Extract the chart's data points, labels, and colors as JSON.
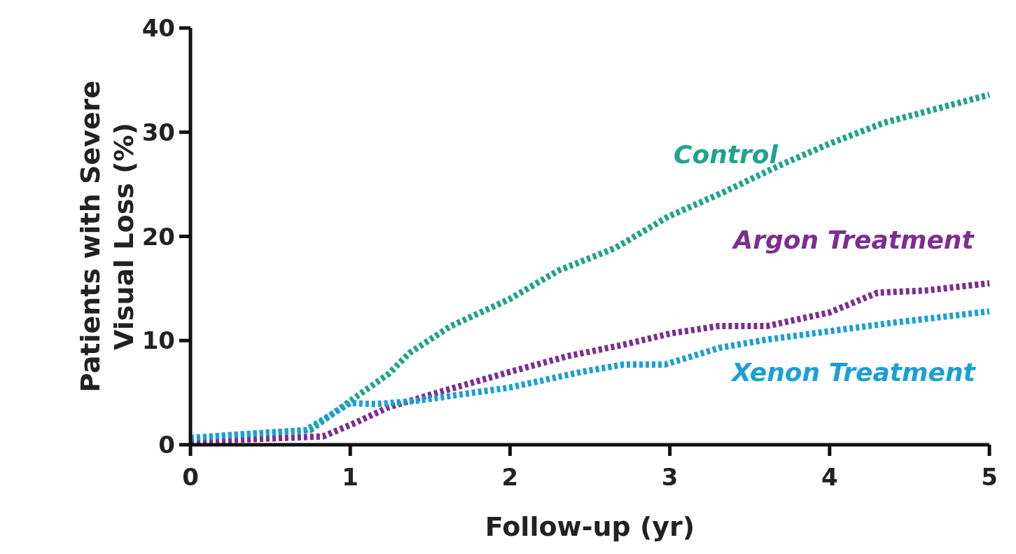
{
  "chart_data": {
    "type": "line",
    "xlabel": "Follow-up (yr)",
    "ylabel": "Patients with Severe\nVisual Loss (%)",
    "xlim": [
      0,
      5
    ],
    "ylim": [
      0,
      40
    ],
    "xticks": [
      0,
      1,
      2,
      3,
      4,
      5
    ],
    "yticks": [
      0,
      10,
      20,
      30,
      40
    ],
    "grid": false,
    "line_style": "dotted",
    "marker": "none",
    "series": [
      {
        "name": "Control",
        "color": "#1fa38a",
        "x": [
          0,
          0.3,
          0.75,
          1.0,
          1.24,
          1.37,
          1.63,
          2.0,
          2.3,
          2.66,
          2.99,
          3.33,
          3.7,
          4.0,
          4.34,
          5
        ],
        "values": [
          0.6,
          1.0,
          1.4,
          4.2,
          6.8,
          8.8,
          11.4,
          14,
          16.7,
          18.9,
          21.9,
          24.2,
          26.9,
          28.9,
          30.9,
          33.6
        ]
      },
      {
        "name": "Argon Treatment",
        "color": "#7b2f8e",
        "x": [
          0,
          0.83,
          1.03,
          1.24,
          1.59,
          2.0,
          2.36,
          2.71,
          3.01,
          3.31,
          3.61,
          4.0,
          4.3,
          4.6,
          5
        ],
        "values": [
          0.3,
          0.8,
          2.1,
          3.6,
          5.2,
          7,
          8.5,
          9.6,
          10.7,
          11.4,
          11.4,
          12.7,
          14.6,
          14.8,
          15.5
        ]
      },
      {
        "name": "Xenon Treatment",
        "color": "#1b9fd6",
        "x": [
          0,
          0.72,
          1.0,
          1.16,
          1.41,
          2.0,
          2.45,
          2.71,
          2.97,
          3.31,
          3.61,
          4.0,
          4.39,
          5
        ],
        "values": [
          0.65,
          1.4,
          4.0,
          3.9,
          4.2,
          5.5,
          7.0,
          7.7,
          7.7,
          9.3,
          10.1,
          10.9,
          11.7,
          12.8
        ]
      }
    ]
  }
}
